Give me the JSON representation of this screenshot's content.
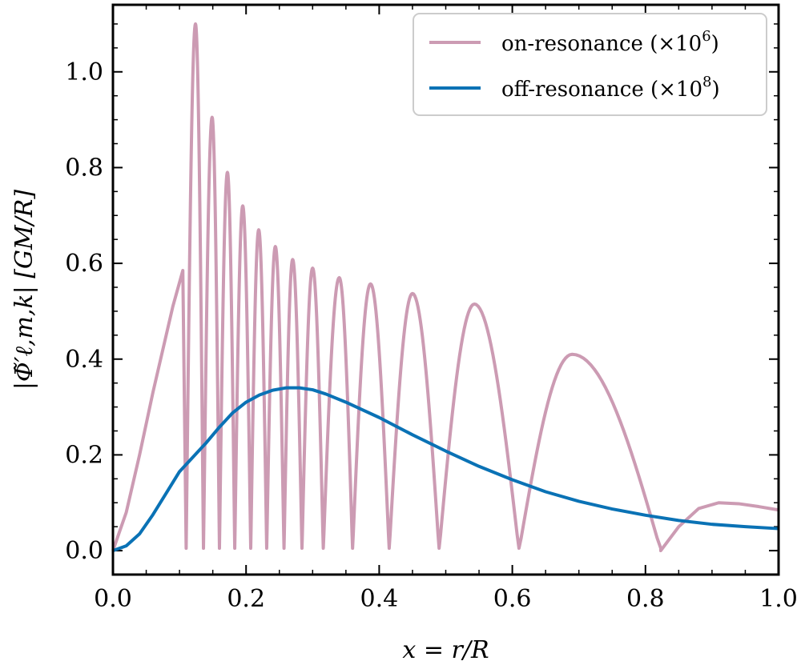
{
  "chart_data": {
    "type": "line",
    "xlabel": "x = r/R",
    "ylabel": "|Φ̃′ℓ,m,k| [GM/R]",
    "xlim": [
      0.0,
      1.0
    ],
    "ylim": [
      -0.05,
      1.14
    ],
    "x_ticks": [
      "0.0",
      "0.2",
      "0.4",
      "0.6",
      "0.8",
      "1.0"
    ],
    "y_ticks": [
      "0.0",
      "0.2",
      "0.4",
      "0.6",
      "0.8",
      "1.0"
    ],
    "grid": false,
    "legend_position": "top-right",
    "colors": {
      "on": "#cc9bb3",
      "off": "#0a72b5"
    },
    "series": [
      {
        "name": "on-resonance (×10^6)",
        "color": "#cc9bb3",
        "segments": [
          {
            "x": [
              0.0,
              0.02,
              0.04,
              0.06,
              0.08,
              0.09,
              0.1,
              0.105,
              0.11
            ],
            "y": [
              0.0,
              0.08,
              0.2,
              0.33,
              0.45,
              0.51,
              0.56,
              0.585,
              0.005
            ]
          },
          {
            "peak_x": 0.124,
            "peak_y": 1.1,
            "zero_end": 0.136
          },
          {
            "peak_x": 0.149,
            "peak_y": 0.905,
            "zero_end": 0.16
          },
          {
            "peak_x": 0.172,
            "peak_y": 0.79,
            "zero_end": 0.183
          },
          {
            "peak_x": 0.195,
            "peak_y": 0.72,
            "zero_end": 0.207
          },
          {
            "peak_x": 0.219,
            "peak_y": 0.67,
            "zero_end": 0.231
          },
          {
            "peak_x": 0.244,
            "peak_y": 0.635,
            "zero_end": 0.257
          },
          {
            "peak_x": 0.27,
            "peak_y": 0.608,
            "zero_end": 0.284
          },
          {
            "peak_x": 0.3,
            "peak_y": 0.59,
            "zero_end": 0.316
          },
          {
            "peak_x": 0.34,
            "peak_y": 0.57,
            "zero_end": 0.36
          },
          {
            "peak_x": 0.387,
            "peak_y": 0.557,
            "zero_end": 0.415
          },
          {
            "peak_x": 0.45,
            "peak_y": 0.537,
            "zero_end": 0.49
          },
          {
            "peak_x": 0.543,
            "peak_y": 0.515,
            "zero_end": 0.61
          },
          {
            "peak_x": 0.69,
            "peak_y": 0.41,
            "zero_end": 0.823
          },
          {
            "x": [
              0.823,
              0.85,
              0.88,
              0.91,
              0.94,
              0.97,
              1.0
            ],
            "y": [
              0.0,
              0.05,
              0.088,
              0.1,
              0.098,
              0.092,
              0.085
            ]
          }
        ]
      },
      {
        "name": "off-resonance (×10^8)",
        "color": "#0a72b5",
        "x": [
          0.0,
          0.02,
          0.04,
          0.06,
          0.08,
          0.1,
          0.11,
          0.12,
          0.14,
          0.16,
          0.18,
          0.2,
          0.22,
          0.24,
          0.26,
          0.28,
          0.3,
          0.32,
          0.35,
          0.4,
          0.45,
          0.5,
          0.55,
          0.6,
          0.65,
          0.7,
          0.75,
          0.8,
          0.85,
          0.9,
          0.95,
          1.0
        ],
        "y": [
          0.0,
          0.01,
          0.035,
          0.075,
          0.12,
          0.165,
          0.18,
          0.195,
          0.225,
          0.258,
          0.288,
          0.31,
          0.325,
          0.335,
          0.34,
          0.34,
          0.336,
          0.327,
          0.31,
          0.278,
          0.242,
          0.208,
          0.176,
          0.148,
          0.123,
          0.103,
          0.087,
          0.074,
          0.063,
          0.055,
          0.05,
          0.046
        ]
      }
    ]
  },
  "legend": {
    "on_label": "on-resonance (×10",
    "on_exp": "6",
    "off_label": "off-resonance (×10",
    "off_exp": "8",
    "close": ")"
  }
}
